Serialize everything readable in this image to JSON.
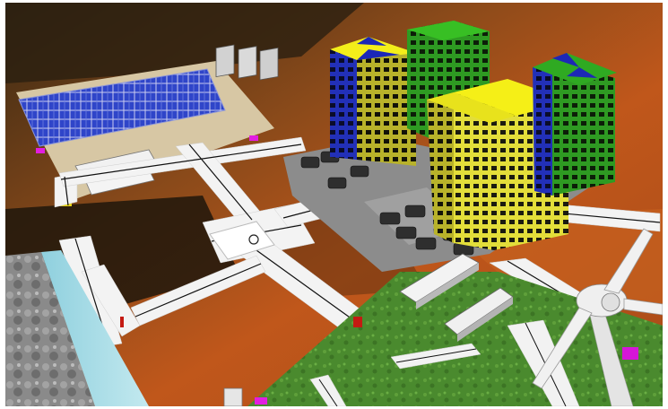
{
  "scene": {
    "type": "3d-city-simulation-view",
    "labels_visible": false,
    "terrain": "desert-rock-orange",
    "districts": [
      {
        "name": "solar-farm",
        "features": [
          "solar-panel-grid",
          "battery-racks",
          "trailers"
        ]
      },
      {
        "name": "downtown",
        "features": [
          "skyscrapers",
          "parking-lot",
          "cars"
        ]
      },
      {
        "name": "residential-green",
        "features": [
          "grass-lot",
          "trailers",
          "wind-turbine"
        ]
      },
      {
        "name": "waterfront",
        "features": [
          "river",
          "rock-cliff"
        ]
      }
    ],
    "building_roof_colors": [
      "#f2ee15",
      "#36b51f",
      "#1a24b4"
    ],
    "colors": {
      "terrain_orange": "#b9531a",
      "terrain_dark": "#3a2a14",
      "road": "#f4f4f4",
      "road_line": "#111111",
      "solar_panel": "#2a3bb8",
      "tower_yellow": "#e2dc3b",
      "tower_blue": "#1c26a8",
      "tower_green": "#2f9a22",
      "grass": "#4f8f32",
      "water": "#a9dde6",
      "marker_magenta": "#e21ee0"
    }
  }
}
